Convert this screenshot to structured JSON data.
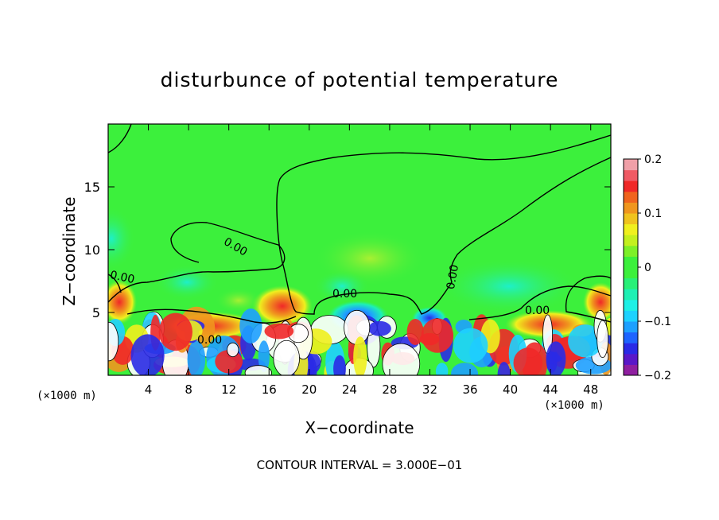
{
  "chart_data": {
    "type": "heatmap",
    "title": "disturbunce of potential temperature",
    "xlabel": "X−coordinate",
    "ylabel": "Z−coordinate",
    "x_unit_left": "(×1000 m)",
    "x_unit_right": "(×1000 m)",
    "xlim": [
      0,
      50
    ],
    "ylim": [
      0,
      20
    ],
    "x_ticks": [
      4,
      8,
      12,
      16,
      20,
      24,
      28,
      32,
      36,
      40,
      44,
      48
    ],
    "y_ticks": [
      5,
      10,
      15
    ],
    "colorbar": {
      "range": [
        -0.2,
        0.2
      ],
      "labels": [
        "0.2",
        "0.1",
        "0",
        "−0.1",
        "−0.2"
      ],
      "label_values": [
        0.2,
        0.1,
        0,
        -0.1,
        -0.2
      ],
      "colors": [
        "#8f1fa0",
        "#5a18c8",
        "#2a2ae6",
        "#1e64ff",
        "#1ea0ff",
        "#1ed2ff",
        "#1ef0e6",
        "#1ef0b4",
        "#28f078",
        "#3cf03c",
        "#3cf03c",
        "#7df028",
        "#c3f01e",
        "#f0f01e",
        "#f0c31e",
        "#f0961e",
        "#f0641e",
        "#f02828",
        "#f05a64",
        "#f0a0a8"
      ]
    },
    "contour_labels": [
      "0.00",
      "0.00",
      "0.00",
      "0.00",
      "0.00",
      "0.00",
      "0.00"
    ],
    "contour_interval": "CONTOUR INTERVAL = 3.000E−01"
  }
}
